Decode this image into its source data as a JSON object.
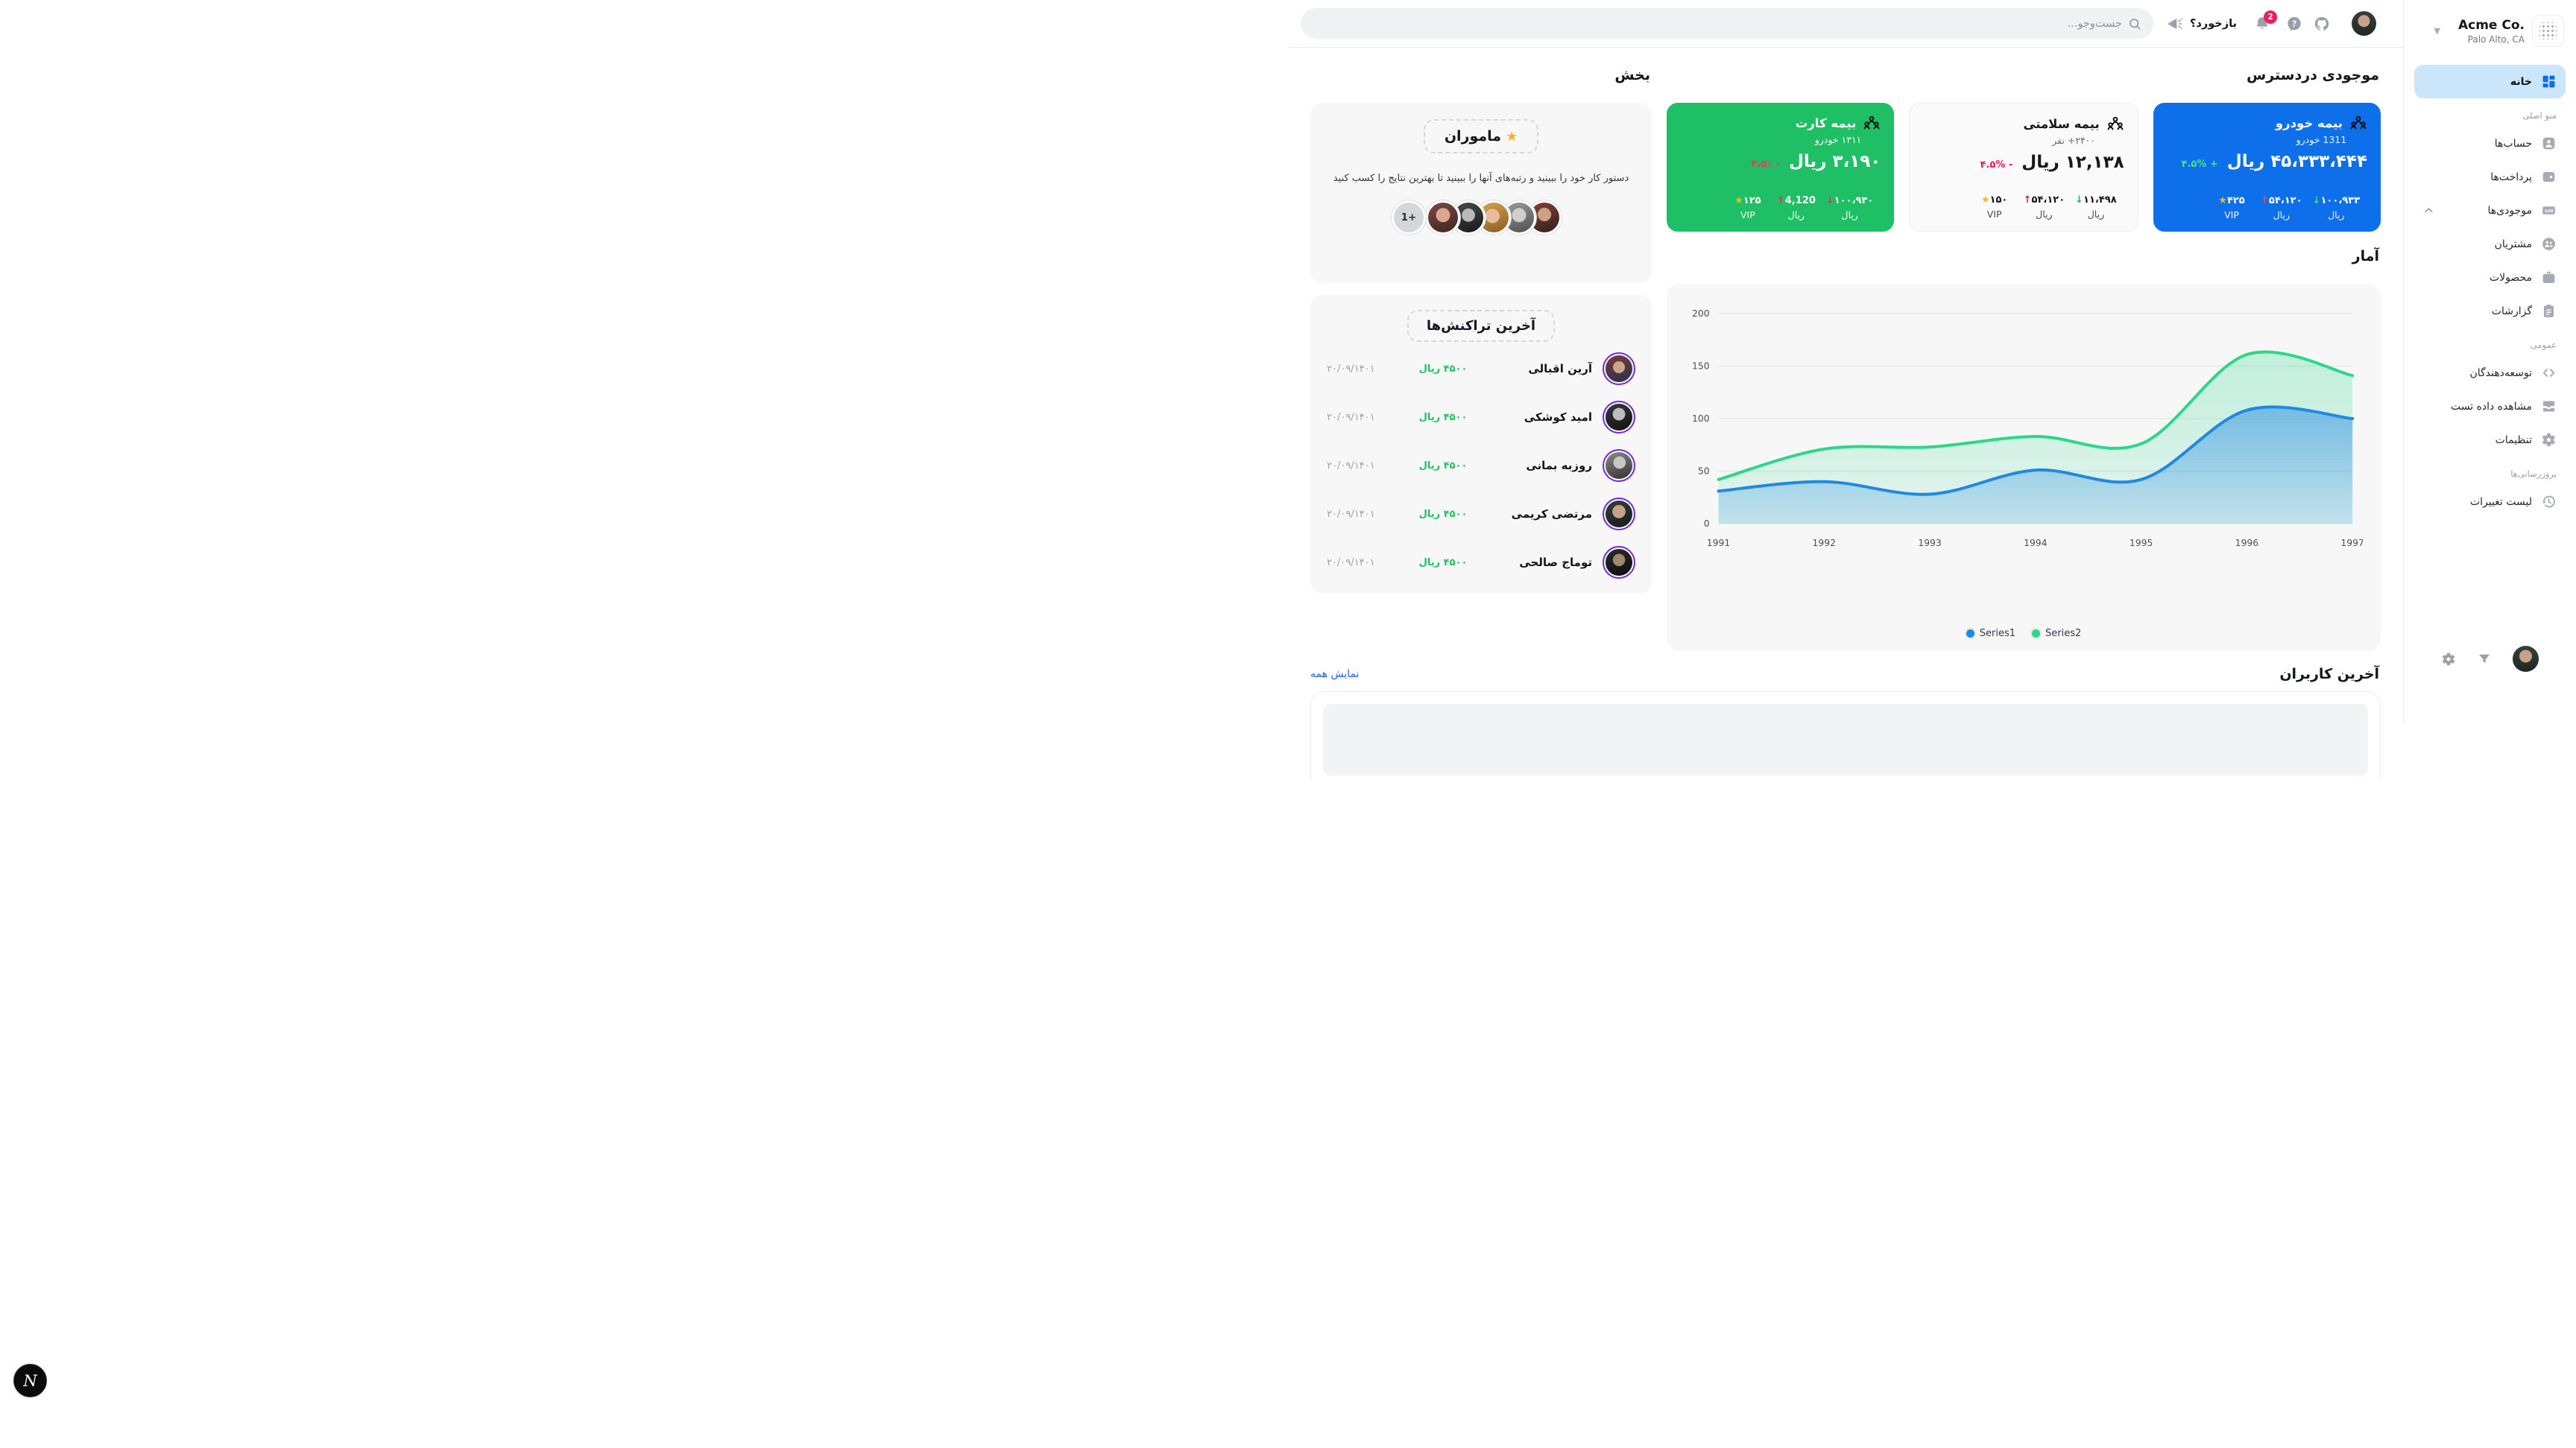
{
  "topbar": {
    "search_placeholder": "جست‌وجو...",
    "feedback_label": "بازخورد؟",
    "notification_count": "2"
  },
  "sidebar": {
    "company": {
      "name": "Acme Co.",
      "location": "Palo Alto, CA"
    },
    "active_item": {
      "label": "خانه"
    },
    "section_labels": {
      "main": "منو اصلی",
      "general": "عمومی",
      "updates": "بروزرسانی‌ها"
    },
    "items": [
      {
        "label": "حساب‌ها",
        "icon": "user-card-icon"
      },
      {
        "label": "پرداخت‌ها",
        "icon": "wallet-icon"
      },
      {
        "label": "موجودی‌ها",
        "icon": "banknote-icon",
        "expanded": true
      },
      {
        "label": "مشتریان",
        "icon": "customers-icon"
      },
      {
        "label": "محصولات",
        "icon": "briefcase-icon"
      },
      {
        "label": "گزارشات",
        "icon": "clipboard-icon"
      },
      {
        "label": "توسعه‌دهندگان",
        "icon": "code-icon"
      },
      {
        "label": "مشاهده داده تست",
        "icon": "inbox-icon"
      },
      {
        "label": "تنظیمات",
        "icon": "gear-icon"
      },
      {
        "label": "لیست تغییرات",
        "icon": "history-icon"
      }
    ]
  },
  "inventory": {
    "heading": "موجودی دردسترس",
    "cards": [
      {
        "variant": "blue",
        "title": "بیمه خودرو",
        "subtitle": "1311 خودرو",
        "value": "۴۵،۳۳۳،۴۴۴ ریال",
        "delta": "۴.۵% +",
        "delta_color": "#46e584",
        "stats": [
          {
            "value": "۱۰۰،۹۳۳",
            "arrow": "↓",
            "arrow_color": "#35e07a",
            "label": "ریال"
          },
          {
            "value": "۵۴،۱۲۰",
            "arrow": "↑",
            "arrow_color": "#fb3b7c",
            "label": "ریال"
          },
          {
            "value": "۴۲۵",
            "star": "★",
            "label": "VIP"
          }
        ]
      },
      {
        "variant": "light",
        "title": "بیمه سلامتی",
        "subtitle": "۲۴۰۰+ نفر",
        "value": "۱۲,۱۳۸ ریال",
        "delta": "۴.۵% -",
        "delta_color": "#f31260",
        "stats": [
          {
            "value": "۱۱،۴۹۸",
            "arrow": "↓",
            "arrow_color": "#18ba5c",
            "label": "ریال"
          },
          {
            "value": "۵۴،۱۲۰",
            "arrow": "↑",
            "arrow_color": "#f31260",
            "label": "ریال"
          },
          {
            "value": "۱۵۰",
            "star": "★",
            "label": "VIP"
          }
        ]
      },
      {
        "variant": "green",
        "title": "بیمه کارت",
        "subtitle": "۱۳۱۱ خودرو",
        "value": "۳،۱۹۰ ریال",
        "delta": "۴،۵٪ -",
        "delta_color": "#ff2e63",
        "stats": [
          {
            "value": "۱۰۰،۹۳۰",
            "arrow": "↓",
            "arrow_color": "#ef2663",
            "label": "ریال"
          },
          {
            "value": "4,120",
            "arrow": "↑",
            "arrow_color": "#ef2663",
            "label": "ریال"
          },
          {
            "value": "۱۲۵",
            "star": "★",
            "label": "VIP"
          }
        ]
      }
    ]
  },
  "section": {
    "heading": "بخش",
    "agents": {
      "star": "★",
      "title": "ماموران",
      "description": "دستور کار خود را ببینید و رتبه‌های آنها را ببینید تا بهترین نتایج را کسب کنید",
      "more_label": "1+"
    }
  },
  "transactions": {
    "title": "آخرین تراکنش‌ها",
    "rows": [
      {
        "name": "آرین اقبالی",
        "amount": "۴۵۰۰ ریال",
        "date": "۲۰/۰۹/۱۴۰۱"
      },
      {
        "name": "امید کوشکی",
        "amount": "۴۵۰۰ ریال",
        "date": "۲۰/۰۹/۱۴۰۱"
      },
      {
        "name": "روزبه بمانی",
        "amount": "۴۵۰۰ ریال",
        "date": "۲۰/۰۹/۱۴۰۱"
      },
      {
        "name": "مرتضی کریمی",
        "amount": "۴۵۰۰ ریال",
        "date": "۲۰/۰۹/۱۴۰۱"
      },
      {
        "name": "توماج صالحی",
        "amount": "۴۵۰۰ ریال",
        "date": "۲۰/۰۹/۱۴۰۱"
      }
    ]
  },
  "stats_section": {
    "heading": "آمار"
  },
  "chart_data": {
    "type": "area",
    "x": [
      1991,
      1992,
      1993,
      1994,
      1995,
      1996,
      1997
    ],
    "series": [
      {
        "name": "Series1",
        "color": "#1e88e5",
        "values": [
          31,
          40,
          28,
          51,
          42,
          108,
          100
        ]
      },
      {
        "name": "Series2",
        "color": "#2bd789",
        "values": [
          42,
          71,
          73,
          83,
          76,
          161,
          141
        ]
      }
    ],
    "ylim": [
      0,
      200
    ],
    "yticks": [
      0,
      50,
      100,
      150,
      200
    ],
    "grid": true,
    "legend_position": "bottom"
  },
  "users": {
    "heading": "آخرین کاربران",
    "show_all": "نمایش همه"
  },
  "dev_badge": "N",
  "colors": {
    "accent_blue": "#0e6feb",
    "accent_green": "#1fc065",
    "badge_pink": "#eb1d63",
    "active_item_bg": "#cbe5fb",
    "link_blue": "#2563eb",
    "amount_green": "#22bf63",
    "avatar_ring_purple": "#7428e0"
  }
}
